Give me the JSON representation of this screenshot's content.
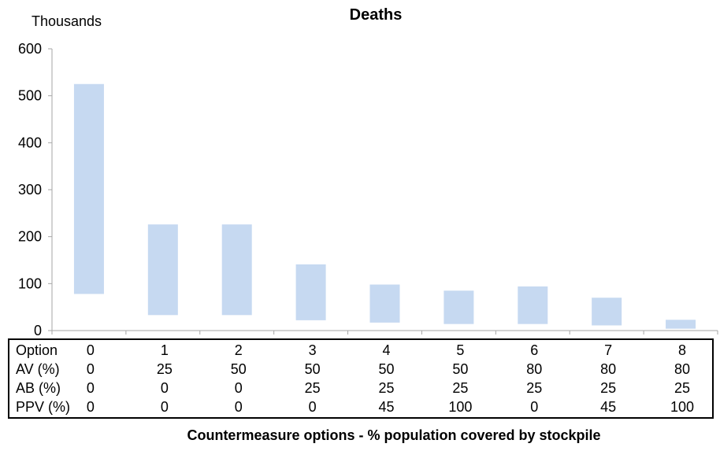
{
  "chart_data": {
    "type": "bar",
    "subtype": "floating-range",
    "title": "Deaths",
    "units_label": "Thousands",
    "xlabel": "Countermeasure options - % population covered by stockpile",
    "ylabel": "",
    "ylim": [
      0,
      600
    ],
    "yticks": [
      "0",
      "100",
      "200",
      "300",
      "400",
      "500",
      "600"
    ],
    "grid": false,
    "bar_color": "#c6d9f1",
    "categories": [
      "0",
      "1",
      "2",
      "3",
      "4",
      "5",
      "6",
      "7",
      "8"
    ],
    "low": [
      78,
      33,
      33,
      22,
      17,
      14,
      14,
      11,
      4
    ],
    "high": [
      525,
      226,
      226,
      141,
      98,
      85,
      94,
      70,
      23
    ]
  },
  "table": {
    "rows": [
      {
        "label": "Option",
        "values": [
          "0",
          "1",
          "2",
          "3",
          "4",
          "5",
          "6",
          "7",
          "8"
        ]
      },
      {
        "label": "AV (%)",
        "values": [
          "0",
          "25",
          "50",
          "50",
          "50",
          "50",
          "80",
          "80",
          "80"
        ]
      },
      {
        "label": "AB (%)",
        "values": [
          "0",
          "0",
          "0",
          "25",
          "25",
          "25",
          "25",
          "25",
          "25"
        ]
      },
      {
        "label": "PPV (%)",
        "values": [
          "0",
          "0",
          "0",
          "0",
          "45",
          "100",
          "0",
          "45",
          "100"
        ]
      }
    ]
  }
}
